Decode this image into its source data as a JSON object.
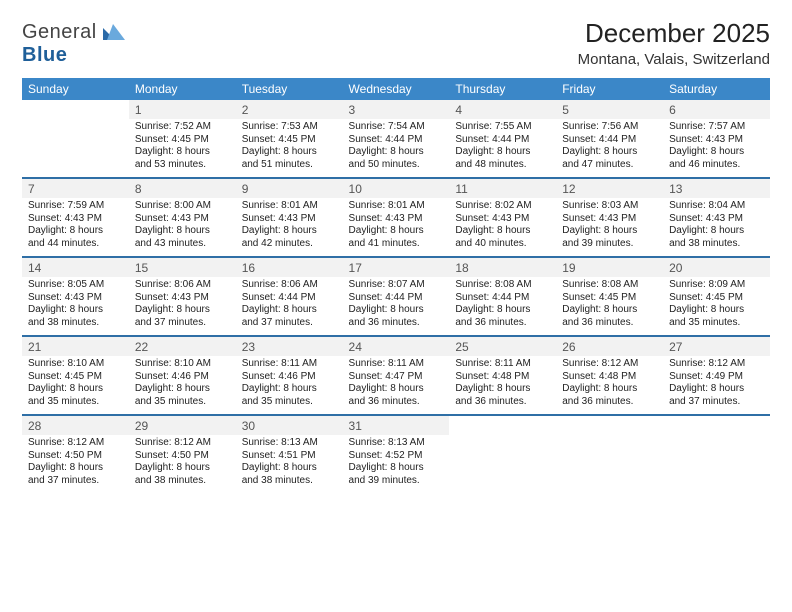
{
  "logo": {
    "word1": "General",
    "word2": "Blue"
  },
  "title": "December 2025",
  "location": "Montana, Valais, Switzerland",
  "colors": {
    "header_bg": "#3b87c8",
    "row_divider": "#2f6fa6",
    "day_cell_bg": "#f2f2f2",
    "page_bg": "#ffffff",
    "text": "#2b2b2b"
  },
  "dow": [
    "Sunday",
    "Monday",
    "Tuesday",
    "Wednesday",
    "Thursday",
    "Friday",
    "Saturday"
  ],
  "weeks": [
    [
      {
        "n": "",
        "lines": []
      },
      {
        "n": "1",
        "lines": [
          "Sunrise: 7:52 AM",
          "Sunset: 4:45 PM",
          "Daylight: 8 hours",
          "and 53 minutes."
        ]
      },
      {
        "n": "2",
        "lines": [
          "Sunrise: 7:53 AM",
          "Sunset: 4:45 PM",
          "Daylight: 8 hours",
          "and 51 minutes."
        ]
      },
      {
        "n": "3",
        "lines": [
          "Sunrise: 7:54 AM",
          "Sunset: 4:44 PM",
          "Daylight: 8 hours",
          "and 50 minutes."
        ]
      },
      {
        "n": "4",
        "lines": [
          "Sunrise: 7:55 AM",
          "Sunset: 4:44 PM",
          "Daylight: 8 hours",
          "and 48 minutes."
        ]
      },
      {
        "n": "5",
        "lines": [
          "Sunrise: 7:56 AM",
          "Sunset: 4:44 PM",
          "Daylight: 8 hours",
          "and 47 minutes."
        ]
      },
      {
        "n": "6",
        "lines": [
          "Sunrise: 7:57 AM",
          "Sunset: 4:43 PM",
          "Daylight: 8 hours",
          "and 46 minutes."
        ]
      }
    ],
    [
      {
        "n": "7",
        "lines": [
          "Sunrise: 7:59 AM",
          "Sunset: 4:43 PM",
          "Daylight: 8 hours",
          "and 44 minutes."
        ]
      },
      {
        "n": "8",
        "lines": [
          "Sunrise: 8:00 AM",
          "Sunset: 4:43 PM",
          "Daylight: 8 hours",
          "and 43 minutes."
        ]
      },
      {
        "n": "9",
        "lines": [
          "Sunrise: 8:01 AM",
          "Sunset: 4:43 PM",
          "Daylight: 8 hours",
          "and 42 minutes."
        ]
      },
      {
        "n": "10",
        "lines": [
          "Sunrise: 8:01 AM",
          "Sunset: 4:43 PM",
          "Daylight: 8 hours",
          "and 41 minutes."
        ]
      },
      {
        "n": "11",
        "lines": [
          "Sunrise: 8:02 AM",
          "Sunset: 4:43 PM",
          "Daylight: 8 hours",
          "and 40 minutes."
        ]
      },
      {
        "n": "12",
        "lines": [
          "Sunrise: 8:03 AM",
          "Sunset: 4:43 PM",
          "Daylight: 8 hours",
          "and 39 minutes."
        ]
      },
      {
        "n": "13",
        "lines": [
          "Sunrise: 8:04 AM",
          "Sunset: 4:43 PM",
          "Daylight: 8 hours",
          "and 38 minutes."
        ]
      }
    ],
    [
      {
        "n": "14",
        "lines": [
          "Sunrise: 8:05 AM",
          "Sunset: 4:43 PM",
          "Daylight: 8 hours",
          "and 38 minutes."
        ]
      },
      {
        "n": "15",
        "lines": [
          "Sunrise: 8:06 AM",
          "Sunset: 4:43 PM",
          "Daylight: 8 hours",
          "and 37 minutes."
        ]
      },
      {
        "n": "16",
        "lines": [
          "Sunrise: 8:06 AM",
          "Sunset: 4:44 PM",
          "Daylight: 8 hours",
          "and 37 minutes."
        ]
      },
      {
        "n": "17",
        "lines": [
          "Sunrise: 8:07 AM",
          "Sunset: 4:44 PM",
          "Daylight: 8 hours",
          "and 36 minutes."
        ]
      },
      {
        "n": "18",
        "lines": [
          "Sunrise: 8:08 AM",
          "Sunset: 4:44 PM",
          "Daylight: 8 hours",
          "and 36 minutes."
        ]
      },
      {
        "n": "19",
        "lines": [
          "Sunrise: 8:08 AM",
          "Sunset: 4:45 PM",
          "Daylight: 8 hours",
          "and 36 minutes."
        ]
      },
      {
        "n": "20",
        "lines": [
          "Sunrise: 8:09 AM",
          "Sunset: 4:45 PM",
          "Daylight: 8 hours",
          "and 35 minutes."
        ]
      }
    ],
    [
      {
        "n": "21",
        "lines": [
          "Sunrise: 8:10 AM",
          "Sunset: 4:45 PM",
          "Daylight: 8 hours",
          "and 35 minutes."
        ]
      },
      {
        "n": "22",
        "lines": [
          "Sunrise: 8:10 AM",
          "Sunset: 4:46 PM",
          "Daylight: 8 hours",
          "and 35 minutes."
        ]
      },
      {
        "n": "23",
        "lines": [
          "Sunrise: 8:11 AM",
          "Sunset: 4:46 PM",
          "Daylight: 8 hours",
          "and 35 minutes."
        ]
      },
      {
        "n": "24",
        "lines": [
          "Sunrise: 8:11 AM",
          "Sunset: 4:47 PM",
          "Daylight: 8 hours",
          "and 36 minutes."
        ]
      },
      {
        "n": "25",
        "lines": [
          "Sunrise: 8:11 AM",
          "Sunset: 4:48 PM",
          "Daylight: 8 hours",
          "and 36 minutes."
        ]
      },
      {
        "n": "26",
        "lines": [
          "Sunrise: 8:12 AM",
          "Sunset: 4:48 PM",
          "Daylight: 8 hours",
          "and 36 minutes."
        ]
      },
      {
        "n": "27",
        "lines": [
          "Sunrise: 8:12 AM",
          "Sunset: 4:49 PM",
          "Daylight: 8 hours",
          "and 37 minutes."
        ]
      }
    ],
    [
      {
        "n": "28",
        "lines": [
          "Sunrise: 8:12 AM",
          "Sunset: 4:50 PM",
          "Daylight: 8 hours",
          "and 37 minutes."
        ]
      },
      {
        "n": "29",
        "lines": [
          "Sunrise: 8:12 AM",
          "Sunset: 4:50 PM",
          "Daylight: 8 hours",
          "and 38 minutes."
        ]
      },
      {
        "n": "30",
        "lines": [
          "Sunrise: 8:13 AM",
          "Sunset: 4:51 PM",
          "Daylight: 8 hours",
          "and 38 minutes."
        ]
      },
      {
        "n": "31",
        "lines": [
          "Sunrise: 8:13 AM",
          "Sunset: 4:52 PM",
          "Daylight: 8 hours",
          "and 39 minutes."
        ]
      },
      {
        "n": "",
        "lines": []
      },
      {
        "n": "",
        "lines": []
      },
      {
        "n": "",
        "lines": []
      }
    ]
  ]
}
